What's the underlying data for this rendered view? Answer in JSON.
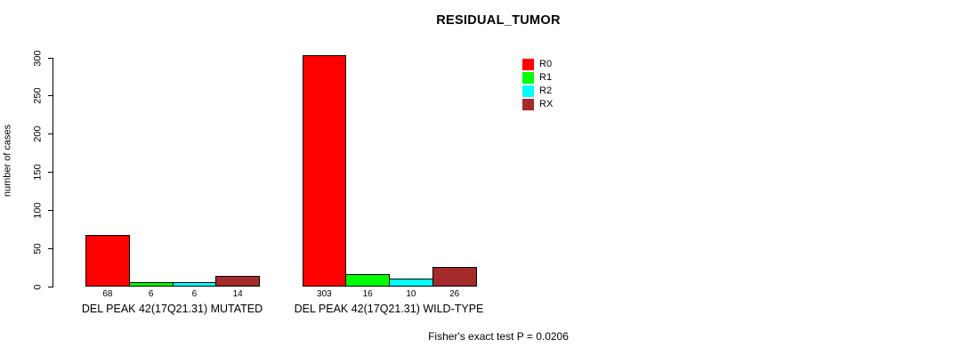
{
  "chart_data": {
    "type": "bar",
    "title": "RESIDUAL_TUMOR",
    "xlabel": "",
    "ylabel": "number of cases",
    "ylim": [
      0,
      300
    ],
    "yticks": [
      0,
      50,
      100,
      150,
      200,
      250,
      300
    ],
    "grid": false,
    "legend_position": "top-right",
    "background": "#ffffff",
    "bar_border_color": "#000000",
    "categories": [
      "DEL PEAK 42(17Q21.31) MUTATED",
      "DEL PEAK 42(17Q21.31) WILD-TYPE"
    ],
    "series": [
      {
        "name": "R0",
        "color": "#ff0000",
        "values": [
          68,
          303
        ]
      },
      {
        "name": "R1",
        "color": "#00ff00",
        "values": [
          6,
          16
        ]
      },
      {
        "name": "R2",
        "color": "#00ffff",
        "values": [
          6,
          10
        ]
      },
      {
        "name": "RX",
        "color": "#a52a2a",
        "values": [
          14,
          26
        ]
      }
    ],
    "bar_value_labels": {
      "DEL PEAK 42(17Q21.31) MUTATED": [
        68,
        6,
        6,
        14
      ],
      "DEL PEAK 42(17Q21.31) WILD-TYPE": [
        303,
        16,
        10,
        26
      ]
    },
    "annotation": "Fisher's exact test P = 0.0206"
  }
}
